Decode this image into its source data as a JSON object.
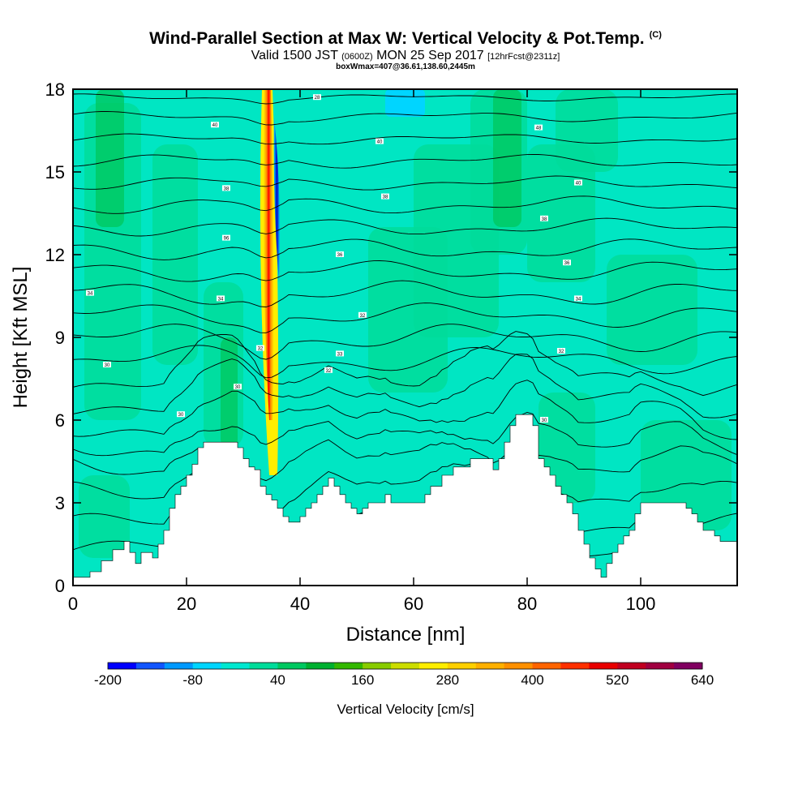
{
  "header": {
    "title": "Wind-Parallel Section at Max W: Vertical Velocity & Pot.Temp.",
    "title_mark": "(C)",
    "valid_prefix": "Valid 1500 JST",
    "valid_utc": "(0600Z)",
    "valid_date": "MON 25 Sep 2017",
    "forecast": "[12hrFcst@2311z]",
    "meta": "boxWmax=407@36.61,138.60,2445m"
  },
  "chart_data": {
    "type": "heatmap",
    "xlabel": "Distance [nm]",
    "ylabel": "Height [Kft MSL]",
    "xlim": [
      0,
      117
    ],
    "ylim": [
      0,
      18
    ],
    "x_ticks": [
      0,
      20,
      40,
      60,
      80,
      100
    ],
    "y_ticks": [
      0,
      3,
      6,
      9,
      12,
      15,
      18
    ],
    "x_tick_labels": [
      "0",
      "20",
      "40",
      "60",
      "80",
      "100"
    ],
    "y_tick_labels": [
      "0",
      "3",
      "6",
      "9",
      "12",
      "15",
      "18"
    ],
    "colorbar": {
      "title": "Vertical Velocity [cm/s]",
      "min": -200,
      "max": 640,
      "step": 40,
      "labels": [
        "-200",
        "-80",
        "40",
        "160",
        "280",
        "400",
        "520",
        "640"
      ],
      "colors": [
        "#0000ff",
        "#1155ff",
        "#0099ff",
        "#00d5ff",
        "#00e8d0",
        "#00dc9a",
        "#00c860",
        "#00b030",
        "#33b800",
        "#88cc00",
        "#ccdd00",
        "#ffee00",
        "#ffd000",
        "#ffb000",
        "#ff9000",
        "#ff6400",
        "#ff3000",
        "#e80000",
        "#c00020",
        "#a00040",
        "#800060"
      ]
    },
    "background_field": {
      "value_band": "0-40 cm/s",
      "color": "#00e6c3"
    },
    "updraft_core": {
      "x": 34,
      "y_range": [
        4,
        18
      ],
      "max_value": 407,
      "color_max": "#ff0000"
    },
    "downdraft_core": {
      "x": 36,
      "y_range": [
        11,
        17
      ],
      "min_value": -200,
      "color_min": "#0000cc"
    },
    "contour_labels": [
      {
        "text": "40",
        "x": 25,
        "y": 16.7
      },
      {
        "text": "40",
        "x": 54,
        "y": 16.1
      },
      {
        "text": "48",
        "x": 82,
        "y": 16.6
      },
      {
        "text": "40",
        "x": 89,
        "y": 14.6
      },
      {
        "text": "38",
        "x": 27,
        "y": 14.4
      },
      {
        "text": "38",
        "x": 55,
        "y": 14.1
      },
      {
        "text": "38",
        "x": 83,
        "y": 13.3
      },
      {
        "text": "96",
        "x": 27,
        "y": 12.6
      },
      {
        "text": "36",
        "x": 47,
        "y": 12.0
      },
      {
        "text": "36",
        "x": 87,
        "y": 11.7
      },
      {
        "text": "34",
        "x": 3,
        "y": 10.6
      },
      {
        "text": "34",
        "x": 26,
        "y": 10.4
      },
      {
        "text": "34",
        "x": 89,
        "y": 10.4
      },
      {
        "text": "32",
        "x": 51,
        "y": 9.8
      },
      {
        "text": "33",
        "x": 47,
        "y": 8.4
      },
      {
        "text": "32",
        "x": 86,
        "y": 8.5
      },
      {
        "text": "32",
        "x": 33,
        "y": 8.6
      },
      {
        "text": "30",
        "x": 6,
        "y": 8.0
      },
      {
        "text": "32",
        "x": 45,
        "y": 7.8
      },
      {
        "text": "30",
        "x": 29,
        "y": 7.2
      },
      {
        "text": "30",
        "x": 19,
        "y": 6.2
      },
      {
        "text": "30",
        "x": 83,
        "y": 6.0
      },
      {
        "text": "28",
        "x": 43,
        "y": 17.7
      }
    ],
    "terrain_profile": [
      [
        0,
        0.3
      ],
      [
        3,
        0.5
      ],
      [
        5,
        0.9
      ],
      [
        7,
        1.3
      ],
      [
        9,
        1.6
      ],
      [
        10,
        1.2
      ],
      [
        11,
        0.8
      ],
      [
        12,
        1.2
      ],
      [
        14,
        1.0
      ],
      [
        15,
        1.5
      ],
      [
        16,
        2.0
      ],
      [
        17,
        2.8
      ],
      [
        18,
        3.3
      ],
      [
        19,
        3.6
      ],
      [
        20,
        4.0
      ],
      [
        21,
        4.4
      ],
      [
        22,
        5.0
      ],
      [
        23,
        5.2
      ],
      [
        24,
        5.2
      ],
      [
        27,
        5.2
      ],
      [
        29,
        5.0
      ],
      [
        30,
        4.6
      ],
      [
        31,
        4.3
      ],
      [
        32,
        4.2
      ],
      [
        33,
        3.6
      ],
      [
        34,
        3.3
      ],
      [
        35,
        3.1
      ],
      [
        36,
        2.8
      ],
      [
        37,
        2.5
      ],
      [
        38,
        2.3
      ],
      [
        39,
        2.3
      ],
      [
        40,
        2.5
      ],
      [
        41,
        2.8
      ],
      [
        42,
        3.0
      ],
      [
        43,
        3.3
      ],
      [
        44,
        3.6
      ],
      [
        45,
        3.9
      ],
      [
        46,
        3.6
      ],
      [
        47,
        3.3
      ],
      [
        48,
        3.0
      ],
      [
        49,
        2.8
      ],
      [
        50,
        2.6
      ],
      [
        51,
        2.8
      ],
      [
        52,
        3.0
      ],
      [
        54,
        3.0
      ],
      [
        55,
        3.3
      ],
      [
        56,
        3.0
      ],
      [
        60,
        3.0
      ],
      [
        62,
        3.3
      ],
      [
        63,
        3.6
      ],
      [
        65,
        4.0
      ],
      [
        67,
        4.3
      ],
      [
        68,
        4.3
      ],
      [
        70,
        4.6
      ],
      [
        72,
        4.6
      ],
      [
        74,
        4.2
      ],
      [
        75,
        4.6
      ],
      [
        76,
        5.2
      ],
      [
        77,
        5.8
      ],
      [
        78,
        6.2
      ],
      [
        80,
        6.2
      ],
      [
        81,
        5.8
      ],
      [
        82,
        4.6
      ],
      [
        83,
        4.3
      ],
      [
        84,
        4.0
      ],
      [
        85,
        3.6
      ],
      [
        86,
        3.3
      ],
      [
        87,
        3.0
      ],
      [
        88,
        2.6
      ],
      [
        89,
        2.0
      ],
      [
        90,
        1.5
      ],
      [
        91,
        1.0
      ],
      [
        92,
        0.6
      ],
      [
        93,
        0.3
      ],
      [
        94,
        0.8
      ],
      [
        95,
        1.2
      ],
      [
        96,
        1.5
      ],
      [
        97,
        1.8
      ],
      [
        98,
        2.0
      ],
      [
        99,
        2.6
      ],
      [
        100,
        3.0
      ],
      [
        106,
        3.0
      ],
      [
        108,
        2.8
      ],
      [
        109,
        2.6
      ],
      [
        110,
        2.3
      ],
      [
        111,
        2.0
      ],
      [
        113,
        1.8
      ],
      [
        114,
        1.6
      ],
      [
        117,
        1.6
      ]
    ],
    "isentropes": [
      {
        "y0": 1.3,
        "amp": 0.6
      },
      {
        "y0": 2.2,
        "amp": 0.7
      },
      {
        "y0": 3.2,
        "amp": 0.9
      },
      {
        "y0": 4.2,
        "amp": 1.0
      },
      {
        "y0": 5.0,
        "amp": 1.0
      },
      {
        "y0": 5.8,
        "amp": 1.0
      },
      {
        "y0": 6.6,
        "amp": 0.9
      },
      {
        "y0": 7.4,
        "amp": 0.9
      },
      {
        "y0": 8.2,
        "amp": 0.8
      },
      {
        "y0": 9.0,
        "amp": 0.8
      },
      {
        "y0": 9.8,
        "amp": 0.7
      },
      {
        "y0": 10.6,
        "amp": 0.7
      },
      {
        "y0": 11.4,
        "amp": 0.6
      },
      {
        "y0": 12.2,
        "amp": 0.6
      },
      {
        "y0": 13.0,
        "amp": 0.5
      },
      {
        "y0": 13.8,
        "amp": 0.5
      },
      {
        "y0": 14.6,
        "amp": 0.4
      },
      {
        "y0": 15.4,
        "amp": 0.4
      },
      {
        "y0": 16.2,
        "amp": 0.3
      },
      {
        "y0": 17.0,
        "amp": 0.3
      },
      {
        "y0": 17.7,
        "amp": 0.2
      }
    ]
  }
}
